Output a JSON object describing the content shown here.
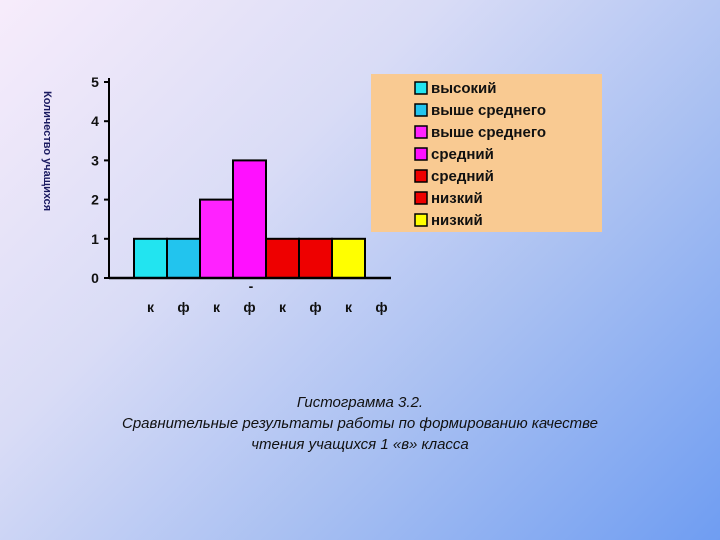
{
  "chart_data": {
    "type": "bar",
    "title": "",
    "ylabel": "Количество учащихся",
    "xlabel": "",
    "ylim": [
      0,
      5
    ],
    "yticks": [
      "0",
      "1",
      "2",
      "3",
      "4",
      "5"
    ],
    "categories": [
      "к",
      "ф",
      "к",
      "ф",
      "к",
      "ф",
      "к",
      "ф"
    ],
    "values": [
      1,
      1,
      2,
      3,
      1,
      1,
      1,
      0
    ],
    "bar_colors": [
      "#22e4f0",
      "#22c4ee",
      "#ff22ff",
      "#ff10ff",
      "#ee0000",
      "#ee0000",
      "#ffff00",
      "#ffff00"
    ],
    "center_mark": "-",
    "legend": {
      "position": "top-right",
      "background": "#f9ca92",
      "items": [
        {
          "label": "высокий",
          "color": "#22e4f0"
        },
        {
          "label": "выше среднего",
          "color": "#22c4ee"
        },
        {
          "label": "выше среднего",
          "color": "#ff22ff"
        },
        {
          "label": "средний",
          "color": "#ff10ff"
        },
        {
          "label": "средний",
          "color": "#ee0000"
        },
        {
          "label": "низкий",
          "color": "#ee0000"
        },
        {
          "label": "низкий",
          "color": "#ffff00"
        }
      ]
    }
  },
  "caption": {
    "line1": "Гистограмма 3.2.",
    "line2": "Сравнительные результаты работы по формированию качестве",
    "line3": "чтения учащихся 1 «в» класса"
  }
}
